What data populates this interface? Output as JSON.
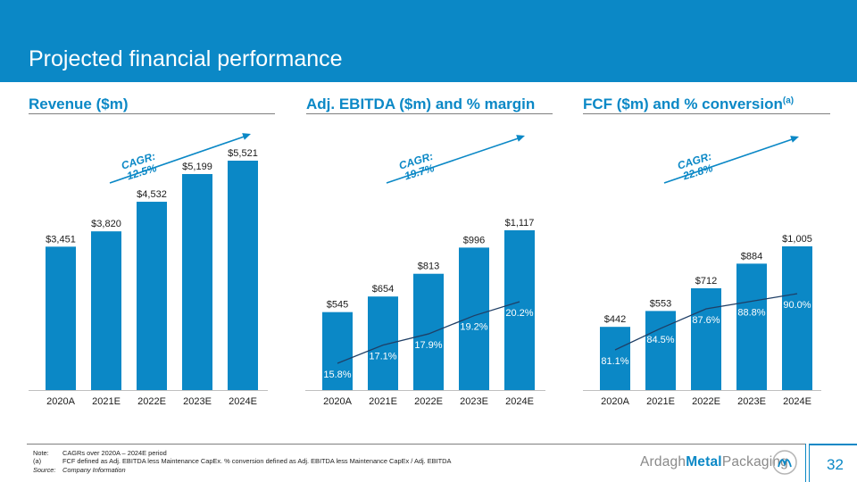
{
  "page": {
    "title": "Projected financial performance",
    "page_number": "32",
    "brand": {
      "part1": "Ardagh",
      "part2": "Metal",
      "part3": "Packaging"
    }
  },
  "colors": {
    "accent": "#0b88c6",
    "line": "#1f3f66",
    "label_line": "#ffffff"
  },
  "panels": [
    {
      "title": "Revenue ($m)",
      "title_sup": "",
      "cagr_line1": "CAGR:",
      "cagr_line2": "12.5%"
    },
    {
      "title": "Adj. EBITDA ($m) and % margin",
      "title_sup": "",
      "cagr_line1": "CAGR:",
      "cagr_line2": "19.7%"
    },
    {
      "title": "FCF ($m) and % conversion",
      "title_sup": "(a)",
      "cagr_line1": "CAGR:",
      "cagr_line2": "22.8%"
    }
  ],
  "chart_data": [
    {
      "type": "bar",
      "title": "Revenue ($m)",
      "categories": [
        "2020A",
        "2021E",
        "2022E",
        "2023E",
        "2024E"
      ],
      "values": [
        3451,
        3820,
        4532,
        5199,
        5521
      ],
      "value_labels": [
        "$3,451",
        "$3,820",
        "$4,532",
        "$5,199",
        "$5,521"
      ],
      "annotation": "CAGR: 12.5%"
    },
    {
      "type": "bar",
      "title": "Adj. EBITDA ($m) and % margin",
      "categories": [
        "2020A",
        "2021E",
        "2022E",
        "2023E",
        "2024E"
      ],
      "values": [
        545,
        654,
        813,
        996,
        1117
      ],
      "value_labels": [
        "$545",
        "$654",
        "$813",
        "$996",
        "$1,117"
      ],
      "line": {
        "values": [
          15.8,
          17.1,
          17.9,
          19.2,
          20.2
        ],
        "labels": [
          "15.8%",
          "17.1%",
          "17.9%",
          "19.2%",
          "20.2%"
        ]
      },
      "annotation": "CAGR: 19.7%"
    },
    {
      "type": "bar",
      "title": "FCF ($m) and % conversion",
      "categories": [
        "2020A",
        "2021E",
        "2022E",
        "2023E",
        "2024E"
      ],
      "values": [
        442,
        553,
        712,
        884,
        1005
      ],
      "value_labels": [
        "$442",
        "$553",
        "$712",
        "$884",
        "$1,005"
      ],
      "line": {
        "values": [
          81.1,
          84.5,
          87.6,
          88.8,
          90.0
        ],
        "labels": [
          "81.1%",
          "84.5%",
          "87.6%",
          "88.8%",
          "90.0%"
        ]
      },
      "annotation": "CAGR: 22.8%"
    }
  ],
  "notes": [
    {
      "key": "Note:",
      "text": "CAGRs over 2020A – 2024E period"
    },
    {
      "key": "(a)",
      "text": "FCF defined as Adj. EBITDA less Maintenance CapEx. % conversion defined as Adj. EBITDA less Maintenance CapEx / Adj. EBITDA"
    },
    {
      "key": "Source:",
      "text": "Company Information"
    }
  ]
}
